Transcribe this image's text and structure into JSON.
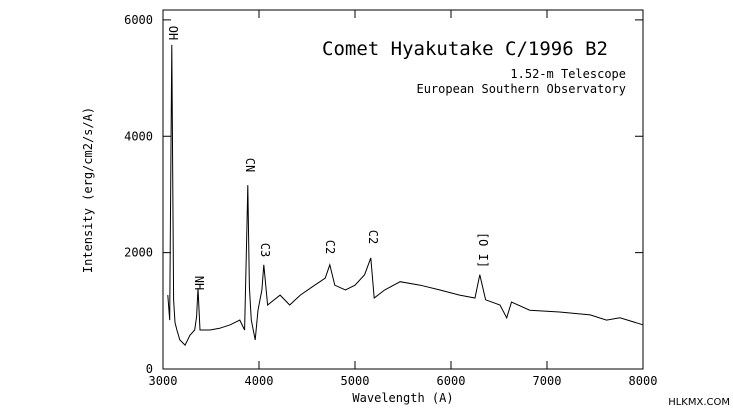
{
  "chart_data": {
    "type": "line",
    "title": "Comet Hyakutake C/1996 B2",
    "subtitle": [
      "1.52-m Telescope",
      "European Southern Observatory"
    ],
    "x_label": "Wavelength (A)",
    "y_label": "Intensity (erg/cm2/s/A)",
    "annotations": [
      "OH",
      "NH",
      "CN",
      "C3",
      "C2",
      "C2",
      "[O I]"
    ],
    "watermark": "HLKMX.COM",
    "color": "#000000",
    "x": [
      3050,
      3070,
      3085,
      3092,
      3110,
      3125,
      3145,
      3175,
      3230,
      3280,
      3330,
      3350,
      3365,
      3385,
      3490,
      3590,
      3700,
      3800,
      3850,
      3875,
      3883,
      3900,
      3920,
      3960,
      3990,
      4030,
      4050,
      4090,
      4220,
      4320,
      4430,
      4580,
      4690,
      4737,
      4790,
      4900,
      5000,
      5100,
      5165,
      5200,
      5310,
      5470,
      5680,
      5880,
      6090,
      6250,
      6300,
      6360,
      6510,
      6580,
      6630,
      6820,
      7130,
      7450,
      7620,
      7760,
      8000
    ],
    "values": [
      1270,
      840,
      4300,
      5570,
      1190,
      800,
      670,
      500,
      410,
      580,
      670,
      900,
      1390,
      670,
      670,
      700,
      760,
      840,
      670,
      2500,
      3160,
      1400,
      840,
      500,
      1010,
      1360,
      1790,
      1100,
      1270,
      1100,
      1270,
      1440,
      1560,
      1790,
      1440,
      1360,
      1440,
      1620,
      1910,
      1220,
      1360,
      1500,
      1440,
      1360,
      1270,
      1220,
      1620,
      1190,
      1100,
      880,
      1150,
      1010,
      980,
      930,
      840,
      880,
      760
    ],
    "xlim": [
      3000,
      8000
    ],
    "ylim": [
      0,
      6170
    ],
    "xticks": [
      3000,
      4000,
      5000,
      6000,
      7000,
      8000
    ],
    "yticks": [
      0,
      2000,
      4000,
      6000
    ]
  }
}
